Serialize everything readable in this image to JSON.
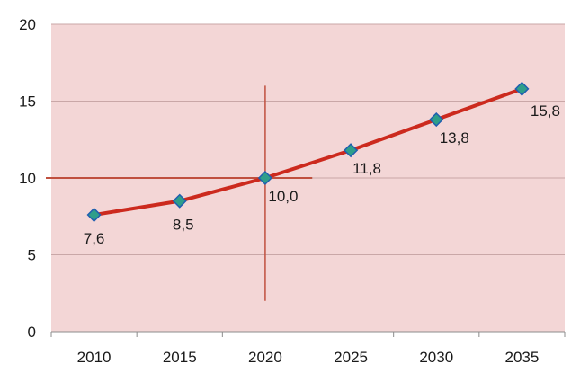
{
  "chart_data": {
    "type": "line",
    "categories": [
      "2010",
      "2015",
      "2020",
      "2025",
      "2030",
      "2035"
    ],
    "series": [
      {
        "values": [
          7.6,
          8.5,
          10.0,
          11.8,
          13.8,
          15.8
        ]
      }
    ],
    "data_labels": [
      "7,6",
      "8,5",
      "10,0",
      "11,8",
      "13,8",
      "15,8"
    ],
    "y_ticks": [
      "0",
      "5",
      "10",
      "15",
      "20"
    ],
    "ylim": [
      0,
      20
    ],
    "grid": true,
    "title": "",
    "xlabel": "",
    "ylabel": "",
    "reference_lines": {
      "x_category": "2020",
      "y_value": 10
    },
    "colors": {
      "plot_background": "#f3d6d6",
      "gridline": "#c9a7a7",
      "line": "#cc2a1e",
      "marker_fill": "#2e9e8a",
      "marker_edge": "#1f5fb0",
      "reference_line": "#c0503f"
    }
  }
}
